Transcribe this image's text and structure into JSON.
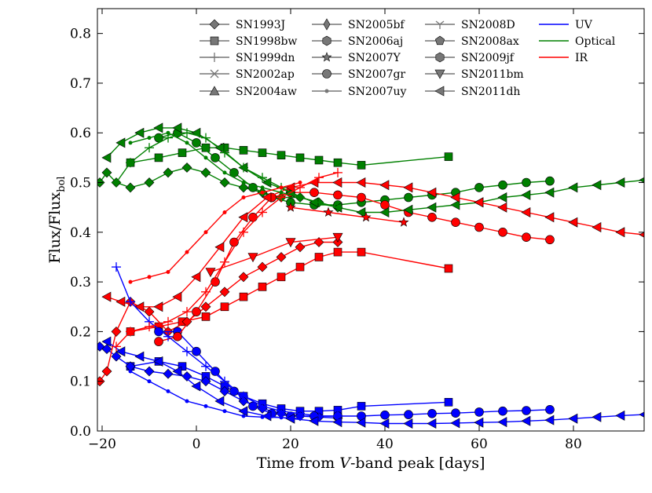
{
  "chart_data": {
    "type": "line",
    "xlabel_parts": [
      "Time from ",
      "V",
      "-band peak [days]"
    ],
    "ylabel_parts": [
      "Flux/Flux",
      "bol"
    ],
    "xlim": [
      -21,
      95
    ],
    "ylim": [
      0.0,
      0.85
    ],
    "xticks": [
      -20,
      0,
      20,
      40,
      60,
      80
    ],
    "xtick_labels": [
      "−20",
      "0",
      "20",
      "40",
      "60",
      "80"
    ],
    "yticks": [
      0.0,
      0.1,
      0.2,
      0.3,
      0.4,
      0.5,
      0.6,
      0.7,
      0.8
    ],
    "ytick_labels": [
      "0.0",
      "0.1",
      "0.2",
      "0.3",
      "0.4",
      "0.5",
      "0.6",
      "0.7",
      "0.8"
    ],
    "legend": {
      "placement": "top",
      "entries": [
        {
          "label": "SN1993J",
          "marker": "diamond",
          "color": "#777777"
        },
        {
          "label": "SN1998bw",
          "marker": "square",
          "color": "#777777"
        },
        {
          "label": "SN1999dn",
          "marker": "plus",
          "color": "#777777"
        },
        {
          "label": "SN2002ap",
          "marker": "x",
          "color": "#777777"
        },
        {
          "label": "SN2004aw",
          "marker": "triangle-up",
          "color": "#777777"
        },
        {
          "label": "SN2005bf",
          "marker": "thin-diamond",
          "color": "#777777"
        },
        {
          "label": "SN2006aj",
          "marker": "hexagon",
          "color": "#777777"
        },
        {
          "label": "SN2007Y",
          "marker": "star",
          "color": "#777777"
        },
        {
          "label": "SN2007gr",
          "marker": "circle",
          "color": "#777777"
        },
        {
          "label": "SN2007uy",
          "marker": "point",
          "color": "#777777"
        },
        {
          "label": "SN2008D",
          "marker": "tri-down",
          "color": "#777777"
        },
        {
          "label": "SN2008ax",
          "marker": "pentagon",
          "color": "#777777"
        },
        {
          "label": "SN2009jf",
          "marker": "hexagon",
          "color": "#777777"
        },
        {
          "label": "SN2011bm",
          "marker": "triangle-down",
          "color": "#777777"
        },
        {
          "label": "SN2011dh",
          "marker": "triangle-left",
          "color": "#777777"
        },
        {
          "label": "UV",
          "marker": "line",
          "color": "#0000ff"
        },
        {
          "label": "Optical",
          "marker": "line",
          "color": "#008000"
        },
        {
          "label": "IR",
          "marker": "line",
          "color": "#ff0000"
        }
      ]
    },
    "series": [
      {
        "sn": "SN1998bw",
        "band": "UV",
        "color": "#0000ff",
        "marker": "square",
        "x": [
          -14,
          -8,
          -3,
          2,
          6,
          10,
          14,
          18,
          22,
          26,
          30,
          35,
          53.5
        ],
        "y": [
          0.13,
          0.14,
          0.13,
          0.11,
          0.09,
          0.07,
          0.055,
          0.045,
          0.04,
          0.04,
          0.042,
          0.05,
          0.058
        ]
      },
      {
        "sn": "SN1998bw",
        "band": "Optical",
        "color": "#008000",
        "marker": "square",
        "x": [
          -14,
          -8,
          -3,
          2,
          6,
          10,
          14,
          18,
          22,
          26,
          30,
          35,
          53.5
        ],
        "y": [
          0.54,
          0.55,
          0.56,
          0.57,
          0.57,
          0.565,
          0.56,
          0.555,
          0.55,
          0.545,
          0.54,
          0.535,
          0.552
        ]
      },
      {
        "sn": "SN1998bw",
        "band": "IR",
        "color": "#ff0000",
        "marker": "square",
        "x": [
          -14,
          -8,
          -3,
          2,
          6,
          10,
          14,
          18,
          22,
          26,
          30,
          35,
          53.5
        ],
        "y": [
          0.2,
          0.21,
          0.22,
          0.23,
          0.25,
          0.27,
          0.29,
          0.31,
          0.33,
          0.35,
          0.36,
          0.36,
          0.327
        ]
      },
      {
        "sn": "SN1993J",
        "band": "UV",
        "color": "#0000ff",
        "marker": "diamond",
        "x": [
          -20.5,
          -19,
          -17,
          -14,
          -10,
          -6,
          -2,
          2,
          6,
          10,
          14,
          18,
          22,
          26,
          30
        ],
        "y": [
          0.17,
          0.165,
          0.15,
          0.13,
          0.12,
          0.115,
          0.11,
          0.1,
          0.08,
          0.06,
          0.045,
          0.035,
          0.03,
          0.028,
          0.026
        ]
      },
      {
        "sn": "SN1993J",
        "band": "Optical",
        "color": "#008000",
        "marker": "diamond",
        "x": [
          -20.5,
          -19,
          -17,
          -14,
          -10,
          -6,
          -2,
          2,
          6,
          10,
          14,
          18,
          22,
          26,
          30
        ],
        "y": [
          0.5,
          0.52,
          0.5,
          0.49,
          0.5,
          0.52,
          0.53,
          0.52,
          0.5,
          0.49,
          0.48,
          0.47,
          0.47,
          0.46,
          0.45
        ]
      },
      {
        "sn": "SN1993J",
        "band": "IR",
        "color": "#ff0000",
        "marker": "diamond",
        "x": [
          -20.5,
          -19,
          -17,
          -14,
          -10,
          -6,
          -2,
          2,
          6,
          10,
          14,
          18,
          22,
          26,
          30
        ],
        "y": [
          0.1,
          0.12,
          0.2,
          0.26,
          0.24,
          0.2,
          0.22,
          0.25,
          0.28,
          0.31,
          0.33,
          0.35,
          0.37,
          0.38,
          0.38
        ]
      },
      {
        "sn": "SN2007gr",
        "band": "UV",
        "color": "#0000ff",
        "marker": "circle",
        "x": [
          -8,
          -4,
          0,
          4,
          8,
          12,
          16,
          20,
          25,
          30,
          35,
          40,
          45,
          50,
          55,
          60,
          65,
          70,
          75
        ],
        "y": [
          0.2,
          0.2,
          0.16,
          0.12,
          0.08,
          0.05,
          0.035,
          0.03,
          0.03,
          0.03,
          0.03,
          0.032,
          0.033,
          0.035,
          0.036,
          0.038,
          0.04,
          0.041,
          0.043
        ]
      },
      {
        "sn": "SN2007gr",
        "band": "Optical",
        "color": "#008000",
        "marker": "circle",
        "x": [
          -8,
          -4,
          0,
          4,
          8,
          12,
          16,
          20,
          25,
          30,
          35,
          40,
          45,
          50,
          55,
          60,
          65,
          70,
          75
        ],
        "y": [
          0.59,
          0.6,
          0.58,
          0.55,
          0.52,
          0.49,
          0.47,
          0.46,
          0.455,
          0.455,
          0.46,
          0.465,
          0.47,
          0.475,
          0.48,
          0.49,
          0.495,
          0.5,
          0.503
        ]
      },
      {
        "sn": "SN2007gr",
        "band": "IR",
        "color": "#ff0000",
        "marker": "circle",
        "x": [
          -8,
          -4,
          0,
          4,
          8,
          12,
          16,
          20,
          25,
          30,
          35,
          40,
          45,
          50,
          55,
          60,
          65,
          70,
          75
        ],
        "y": [
          0.18,
          0.19,
          0.24,
          0.3,
          0.38,
          0.43,
          0.47,
          0.48,
          0.48,
          0.475,
          0.47,
          0.455,
          0.44,
          0.43,
          0.42,
          0.41,
          0.4,
          0.39,
          0.385
        ]
      },
      {
        "sn": "SN2011dh",
        "band": "UV",
        "color": "#0000ff",
        "marker": "triangle-left",
        "x": [
          -19,
          -16,
          -12,
          -8,
          -4,
          0,
          5,
          10,
          15,
          20,
          25,
          30,
          35,
          40,
          45,
          50,
          55,
          60,
          65,
          70,
          75,
          80,
          85,
          90,
          95
        ],
        "y": [
          0.18,
          0.16,
          0.15,
          0.14,
          0.12,
          0.09,
          0.06,
          0.04,
          0.03,
          0.025,
          0.02,
          0.018,
          0.017,
          0.015,
          0.015,
          0.015,
          0.016,
          0.017,
          0.018,
          0.02,
          0.022,
          0.025,
          0.028,
          0.031,
          0.033
        ]
      },
      {
        "sn": "SN2011dh",
        "band": "Optical",
        "color": "#008000",
        "marker": "triangle-left",
        "x": [
          -19,
          -16,
          -12,
          -8,
          -4,
          0,
          5,
          10,
          15,
          20,
          25,
          30,
          35,
          40,
          45,
          50,
          55,
          60,
          65,
          70,
          75,
          80,
          85,
          90,
          95
        ],
        "y": [
          0.55,
          0.58,
          0.6,
          0.61,
          0.61,
          0.6,
          0.57,
          0.53,
          0.5,
          0.48,
          0.46,
          0.45,
          0.44,
          0.44,
          0.445,
          0.45,
          0.455,
          0.46,
          0.47,
          0.475,
          0.48,
          0.49,
          0.495,
          0.5,
          0.505
        ]
      },
      {
        "sn": "SN2011dh",
        "band": "IR",
        "color": "#ff0000",
        "marker": "triangle-left",
        "x": [
          -19,
          -16,
          -12,
          -8,
          -4,
          0,
          5,
          10,
          15,
          20,
          25,
          30,
          35,
          40,
          45,
          50,
          55,
          60,
          65,
          70,
          75,
          80,
          85,
          90,
          95
        ],
        "y": [
          0.27,
          0.26,
          0.25,
          0.25,
          0.27,
          0.31,
          0.37,
          0.43,
          0.47,
          0.49,
          0.5,
          0.5,
          0.5,
          0.495,
          0.49,
          0.48,
          0.47,
          0.46,
          0.45,
          0.44,
          0.43,
          0.42,
          0.41,
          0.4,
          0.395
        ]
      },
      {
        "sn": "SN1999dn",
        "band": "UV",
        "color": "#0000ff",
        "marker": "plus",
        "x": [
          -17,
          -14,
          -10,
          -6,
          -2,
          2,
          6,
          10,
          14,
          18,
          22,
          26,
          30
        ],
        "y": [
          0.33,
          0.26,
          0.22,
          0.19,
          0.16,
          0.13,
          0.1,
          0.07,
          0.05,
          0.04,
          0.035,
          0.03,
          0.03
        ]
      },
      {
        "sn": "SN1999dn",
        "band": "Optical",
        "color": "#008000",
        "marker": "plus",
        "x": [
          -17,
          -14,
          -10,
          -6,
          -2,
          2,
          6,
          10,
          14,
          18,
          22,
          26,
          30
        ],
        "y": [
          0.5,
          0.54,
          0.57,
          0.59,
          0.6,
          0.59,
          0.56,
          0.53,
          0.51,
          0.49,
          0.47,
          0.46,
          0.45
        ]
      },
      {
        "sn": "SN1999dn",
        "band": "IR",
        "color": "#ff0000",
        "marker": "plus",
        "x": [
          -17,
          -14,
          -10,
          -6,
          -2,
          2,
          6,
          10,
          14,
          18,
          22,
          26,
          30
        ],
        "y": [
          0.17,
          0.2,
          0.21,
          0.22,
          0.24,
          0.28,
          0.34,
          0.4,
          0.44,
          0.47,
          0.49,
          0.51,
          0.52
        ]
      },
      {
        "sn": "SN2007uy",
        "band": "UV",
        "color": "#0000ff",
        "marker": "point",
        "x": [
          -14,
          -10,
          -6,
          -2,
          2,
          6,
          10,
          14,
          18,
          22
        ],
        "y": [
          0.12,
          0.1,
          0.08,
          0.06,
          0.05,
          0.04,
          0.03,
          0.028,
          0.027,
          0.025
        ]
      },
      {
        "sn": "SN2007uy",
        "band": "Optical",
        "color": "#008000",
        "marker": "point",
        "x": [
          -14,
          -10,
          -6,
          -2,
          2,
          6,
          10,
          14,
          18,
          22
        ],
        "y": [
          0.58,
          0.59,
          0.6,
          0.58,
          0.55,
          0.52,
          0.5,
          0.49,
          0.48,
          0.47
        ]
      },
      {
        "sn": "SN2007uy",
        "band": "IR",
        "color": "#ff0000",
        "marker": "point",
        "x": [
          -14,
          -10,
          -6,
          -2,
          2,
          6,
          10,
          14,
          18,
          22
        ],
        "y": [
          0.3,
          0.31,
          0.32,
          0.36,
          0.4,
          0.44,
          0.47,
          0.48,
          0.49,
          0.5
        ]
      },
      {
        "sn": "SN2011bm",
        "band": "IR",
        "color": "#ff0000",
        "marker": "triangle-down",
        "x": [
          3,
          12,
          20,
          30
        ],
        "y": [
          0.32,
          0.35,
          0.38,
          0.39
        ]
      },
      {
        "sn": "SN2007Y",
        "band": "IR",
        "color": "#ff0000",
        "marker": "star",
        "x": [
          20,
          28,
          36,
          44
        ],
        "y": [
          0.45,
          0.44,
          0.43,
          0.42
        ]
      }
    ]
  }
}
